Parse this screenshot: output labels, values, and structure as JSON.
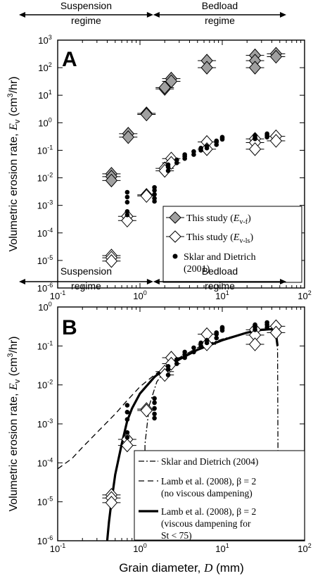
{
  "figure": {
    "x_axis_label": "Grain diameter, D (mm)",
    "x_label_main": "Grain diameter, ",
    "x_label_var": "D",
    "x_label_unit": " (mm)"
  },
  "chart_data": [
    {
      "panel_letter": "A",
      "type": "scatter",
      "x_scale": "log",
      "y_scale": "log",
      "xlim": [
        0.1,
        100
      ],
      "ylim": [
        1e-06,
        1000
      ],
      "ylabel": "Volumetric erosion rate, Ev (cm3/hr)",
      "ylabel_main": "Volumetric erosion rate, ",
      "ylabel_var": "E",
      "ylabel_sub": "v",
      "ylabel_unit_pre": " (cm",
      "ylabel_unit_sup": "3",
      "ylabel_unit_post": "/hr)",
      "x_ticks": [
        "10",
        "10",
        "10",
        "10"
      ],
      "x_tick_exps": [
        "-1",
        "0",
        "1",
        "2"
      ],
      "y_ticks": [
        "10",
        "10",
        "10",
        "10",
        "10",
        "10",
        "10",
        "10",
        "10",
        "10"
      ],
      "y_tick_exps": [
        "-6",
        "-5",
        "-4",
        "-3",
        "-2",
        "-1",
        "0",
        "1",
        "2",
        "3"
      ],
      "regimes": [
        {
          "label_line1": "Suspension",
          "label_line2": "regime",
          "x_from": 0.1,
          "x_to": 1.45
        },
        {
          "label_line1": "Bedload",
          "label_line2": "regime",
          "x_from": 1.45,
          "x_to": 60
        }
      ],
      "legend": [
        {
          "label": "This study (Ev-f)",
          "text": "This study (",
          "var": "E",
          "sub": "v-f",
          "close": ")",
          "marker": "diamond-gray"
        },
        {
          "label": "This study (Ev-ls)",
          "text": "This study (",
          "var": "E",
          "sub": "v-ls",
          "close": ")",
          "marker": "diamond-white"
        },
        {
          "label": "Sklar and Dietrich (2001)",
          "line1": "Sklar and Dietrich",
          "line2": "(2001)",
          "marker": "dot"
        }
      ],
      "series": [
        {
          "name": "This study (Ev-f)",
          "marker": "diamond-gray",
          "points": [
            [
              0.45,
              0.014
            ],
            [
              0.45,
              0.011
            ],
            [
              0.45,
              0.008
            ],
            [
              0.72,
              0.4
            ],
            [
              0.72,
              0.3
            ],
            [
              1.2,
              2.2
            ],
            [
              1.2,
              2.0
            ],
            [
              2.0,
              17
            ],
            [
              2.0,
              19
            ],
            [
              2.4,
              40
            ],
            [
              2.4,
              32
            ],
            [
              6.5,
              180
            ],
            [
              6.5,
              100
            ],
            [
              25,
              280
            ],
            [
              25,
              180
            ],
            [
              25,
              100
            ],
            [
              45,
              320
            ],
            [
              45,
              250
            ]
          ]
        },
        {
          "name": "This study (Ev-ls)",
          "marker": "diamond-white",
          "points": [
            [
              0.45,
              1.5e-05
            ],
            [
              0.45,
              1.25e-05
            ],
            [
              0.45,
              9.5e-06
            ],
            [
              0.7,
              0.0004
            ],
            [
              0.7,
              0.00028
            ],
            [
              1.2,
              0.0024
            ],
            [
              1.2,
              0.0022
            ],
            [
              2.0,
              0.022
            ],
            [
              2.0,
              0.018
            ],
            [
              2.4,
              0.05
            ],
            [
              2.4,
              0.035
            ],
            [
              6.5,
              0.2
            ],
            [
              6.5,
              0.11
            ],
            [
              25,
              0.26
            ],
            [
              25,
              0.19
            ],
            [
              25,
              0.11
            ],
            [
              45,
              0.32
            ],
            [
              45,
              0.22
            ]
          ]
        },
        {
          "name": "Sklar and Dietrich (2001)",
          "marker": "dot",
          "points": [
            [
              0.7,
              0.003
            ],
            [
              0.7,
              0.002
            ],
            [
              0.7,
              0.0013
            ],
            [
              0.7,
              0.0006
            ],
            [
              0.7,
              0.00045
            ],
            [
              1.5,
              0.0045
            ],
            [
              1.5,
              0.0035
            ],
            [
              1.5,
              0.0025
            ],
            [
              1.5,
              0.0018
            ],
            [
              1.5,
              0.0014
            ],
            [
              2.2,
              0.018
            ],
            [
              2.2,
              0.025
            ],
            [
              2.2,
              0.03
            ],
            [
              2.8,
              0.035
            ],
            [
              2.8,
              0.045
            ],
            [
              3.5,
              0.05
            ],
            [
              3.5,
              0.06
            ],
            [
              3.5,
              0.07
            ],
            [
              4.5,
              0.07
            ],
            [
              4.5,
              0.09
            ],
            [
              5.5,
              0.1
            ],
            [
              5.5,
              0.12
            ],
            [
              6.5,
              0.12
            ],
            [
              6.5,
              0.14
            ],
            [
              8.5,
              0.16
            ],
            [
              8.5,
              0.2
            ],
            [
              8.5,
              0.22
            ],
            [
              10,
              0.25
            ],
            [
              10,
              0.28
            ],
            [
              10,
              0.3
            ],
            [
              25,
              0.3
            ],
            [
              25,
              0.35
            ],
            [
              25,
              0.26
            ],
            [
              35,
              0.3
            ],
            [
              35,
              0.35
            ],
            [
              35,
              0.4
            ]
          ]
        }
      ]
    },
    {
      "panel_letter": "B",
      "type": "scatter",
      "x_scale": "log",
      "y_scale": "log",
      "xlim": [
        0.1,
        100
      ],
      "ylim": [
        1e-06,
        1
      ],
      "ylabel": "Volumetric erosion rate, Ev (cm3/hr)",
      "ylabel_main": "Volumetric erosion rate, ",
      "ylabel_var": "E",
      "ylabel_sub": "v",
      "ylabel_unit_pre": " (cm",
      "ylabel_unit_sup": "3",
      "ylabel_unit_post": "/hr)",
      "x_ticks": [
        "10",
        "10",
        "10",
        "10"
      ],
      "x_tick_exps": [
        "-1",
        "0",
        "1",
        "2"
      ],
      "y_ticks": [
        "10",
        "10",
        "10",
        "10",
        "10",
        "10",
        "10"
      ],
      "y_tick_exps": [
        "-6",
        "-5",
        "-4",
        "-3",
        "-2",
        "-1",
        "0"
      ],
      "regimes": [
        {
          "label_line1": "Suspension",
          "label_line2": "regime",
          "x_from": 0.1,
          "x_to": 1.45
        },
        {
          "label_line1": "Bedload",
          "label_line2": "regime",
          "x_from": 1.45,
          "x_to": 60
        }
      ],
      "legend": [
        {
          "label": "Sklar and Dietrich (2004)",
          "line1": "Sklar and Dietrich (2004)",
          "style": "dashdot"
        },
        {
          "label": "Lamb et al. (2008), β = 2 (no viscous dampening)",
          "line1": "Lamb et al. (2008), β = 2",
          "line2": "(no viscous dampening)",
          "style": "dashed"
        },
        {
          "label": "Lamb et al. (2008), β = 2 (viscous dampening for St < 75)",
          "line1": "Lamb et al. (2008), β = 2",
          "line2": "(viscous dampening for",
          "line3": "St < 75)",
          "style": "solid"
        }
      ],
      "series": [
        {
          "name": "This study (Ev-ls)",
          "marker": "diamond-white",
          "points": [
            [
              0.45,
              1.5e-05
            ],
            [
              0.45,
              1.25e-05
            ],
            [
              0.45,
              9.5e-06
            ],
            [
              0.7,
              0.0004
            ],
            [
              0.7,
              0.00028
            ],
            [
              1.2,
              0.0024
            ],
            [
              1.2,
              0.0022
            ],
            [
              2.0,
              0.022
            ],
            [
              2.0,
              0.018
            ],
            [
              2.4,
              0.05
            ],
            [
              2.4,
              0.035
            ],
            [
              6.5,
              0.2
            ],
            [
              6.5,
              0.11
            ],
            [
              25,
              0.26
            ],
            [
              25,
              0.19
            ],
            [
              25,
              0.11
            ],
            [
              45,
              0.32
            ],
            [
              45,
              0.22
            ]
          ]
        },
        {
          "name": "Sklar and Dietrich (2001)",
          "marker": "dot",
          "points": [
            [
              0.7,
              0.003
            ],
            [
              0.7,
              0.002
            ],
            [
              0.7,
              0.0013
            ],
            [
              0.7,
              0.0006
            ],
            [
              0.7,
              0.00045
            ],
            [
              1.5,
              0.0045
            ],
            [
              1.5,
              0.0035
            ],
            [
              1.5,
              0.0025
            ],
            [
              1.5,
              0.0018
            ],
            [
              1.5,
              0.0014
            ],
            [
              2.2,
              0.018
            ],
            [
              2.2,
              0.025
            ],
            [
              2.2,
              0.03
            ],
            [
              2.8,
              0.035
            ],
            [
              2.8,
              0.045
            ],
            [
              3.5,
              0.05
            ],
            [
              3.5,
              0.06
            ],
            [
              3.5,
              0.07
            ],
            [
              4.5,
              0.07
            ],
            [
              4.5,
              0.09
            ],
            [
              5.5,
              0.1
            ],
            [
              5.5,
              0.12
            ],
            [
              6.5,
              0.12
            ],
            [
              6.5,
              0.14
            ],
            [
              8.5,
              0.16
            ],
            [
              8.5,
              0.2
            ],
            [
              8.5,
              0.22
            ],
            [
              10,
              0.25
            ],
            [
              10,
              0.28
            ],
            [
              10,
              0.3
            ],
            [
              25,
              0.3
            ],
            [
              25,
              0.35
            ],
            [
              25,
              0.26
            ],
            [
              35,
              0.3
            ],
            [
              35,
              0.35
            ],
            [
              35,
              0.4
            ]
          ]
        }
      ],
      "curves": [
        {
          "name": "Sklar and Dietrich (2004)",
          "style": "dashdot",
          "points": [
            [
              1.15,
              1e-06
            ],
            [
              1.15,
              0.0003
            ],
            [
              1.3,
              0.003
            ],
            [
              1.6,
              0.012
            ],
            [
              2.2,
              0.03
            ],
            [
              3,
              0.05
            ],
            [
              5,
              0.09
            ],
            [
              10,
              0.15
            ],
            [
              20,
              0.22
            ],
            [
              30,
              0.25
            ],
            [
              40,
              0.26
            ],
            [
              45,
              0.2
            ],
            [
              47,
              0.08
            ],
            [
              48,
              1e-06
            ]
          ]
        },
        {
          "name": "Lamb et al. (2008), β = 2 (no viscous dampening)",
          "style": "dashed",
          "points": [
            [
              0.1,
              7e-05
            ],
            [
              0.15,
              0.00013
            ],
            [
              0.2,
              0.00025
            ],
            [
              0.3,
              0.0006
            ],
            [
              0.5,
              0.0018
            ],
            [
              0.7,
              0.004
            ],
            [
              1,
              0.009
            ],
            [
              1.5,
              0.018
            ],
            [
              2,
              0.028
            ],
            [
              3,
              0.045
            ],
            [
              5,
              0.08
            ],
            [
              10,
              0.14
            ],
            [
              20,
              0.22
            ],
            [
              30,
              0.26
            ],
            [
              40,
              0.27
            ],
            [
              45,
              0.2
            ],
            [
              47,
              0.1
            ]
          ]
        },
        {
          "name": "Lamb et al. (2008), β = 2 (viscous dampening for St < 75)",
          "style": "solid",
          "points": [
            [
              0.4,
              1e-06
            ],
            [
              0.42,
              3e-06
            ],
            [
              0.45,
              1e-05
            ],
            [
              0.5,
              5e-05
            ],
            [
              0.6,
              0.0003
            ],
            [
              0.7,
              0.0012
            ],
            [
              0.8,
              0.0025
            ],
            [
              1,
              0.006
            ],
            [
              1.5,
              0.016
            ],
            [
              2,
              0.026
            ],
            [
              3,
              0.045
            ],
            [
              5,
              0.08
            ],
            [
              10,
              0.14
            ],
            [
              20,
              0.22
            ],
            [
              30,
              0.26
            ],
            [
              40,
              0.27
            ],
            [
              45,
              0.2
            ],
            [
              47,
              0.1
            ]
          ]
        }
      ]
    }
  ]
}
